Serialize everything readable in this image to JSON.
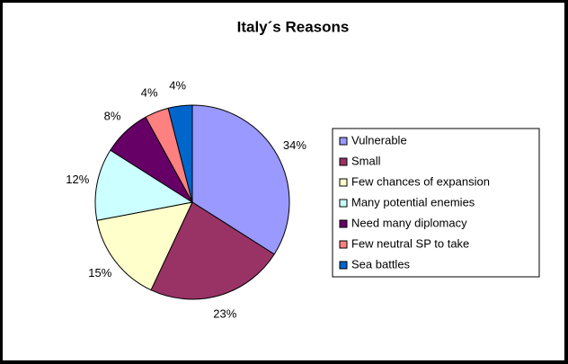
{
  "chart_data": {
    "type": "pie",
    "title": "Italy´s Reasons",
    "categories": [
      "Vulnerable",
      "Small",
      "Few chances of expansion",
      "Many potential enemies",
      "Need many diplomacy",
      "Few neutral SP to take",
      "Sea battles"
    ],
    "values": [
      34,
      23,
      15,
      12,
      8,
      4,
      4
    ],
    "value_labels": [
      "34%",
      "23%",
      "15%",
      "12%",
      "8%",
      "4%",
      "4%"
    ],
    "colors": [
      "#9999ff",
      "#993366",
      "#ffffcc",
      "#ccffff",
      "#660066",
      "#ff8080",
      "#0066cc"
    ],
    "legend": "right"
  }
}
